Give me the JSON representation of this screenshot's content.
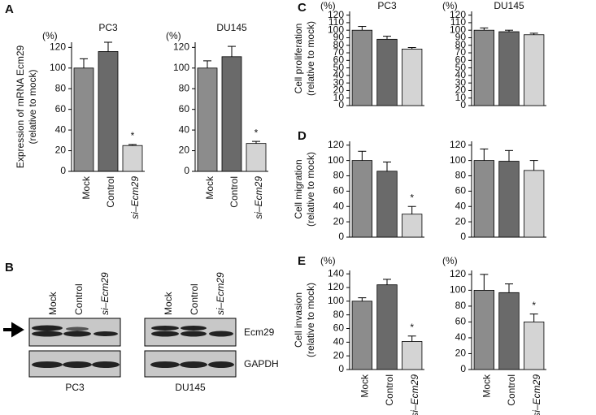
{
  "panel_labels": [
    "A",
    "B",
    "C",
    "D",
    "E"
  ],
  "chart_data": [
    {
      "type": "bar",
      "title": "PC3",
      "unit": "(%)",
      "ylabel": [
        "Expression of mRNA Ecm29",
        "(relative to mock)"
      ],
      "categories": [
        "Mock",
        "Control",
        "si–Ecm29"
      ],
      "values": [
        100,
        116,
        25
      ],
      "errors": [
        9,
        9,
        1
      ],
      "colors": [
        "#8c8c8c",
        "#6a6a6a",
        "#d4d4d4"
      ],
      "significance": [
        null,
        null,
        "*"
      ],
      "ylim": [
        0,
        125
      ],
      "yticks": [
        0,
        20,
        40,
        60,
        80,
        100,
        120
      ]
    },
    {
      "type": "bar",
      "title": "DU145",
      "unit": "(%)",
      "categories": [
        "Mock",
        "Control",
        "si–Ecm29"
      ],
      "values": [
        100,
        111,
        27
      ],
      "errors": [
        7,
        10,
        2
      ],
      "colors": [
        "#8c8c8c",
        "#6a6a6a",
        "#d4d4d4"
      ],
      "significance": [
        null,
        null,
        "*"
      ],
      "ylim": [
        0,
        125
      ],
      "yticks": [
        0,
        20,
        40,
        60,
        80,
        100,
        120
      ]
    },
    {
      "type": "bar",
      "title": "PC3",
      "unit": "(%)",
      "ylabel": [
        "Cell proliferation",
        "(relative to mock)"
      ],
      "categories": [
        null,
        null,
        null
      ],
      "values": [
        100,
        88,
        75
      ],
      "errors": [
        5,
        4,
        2
      ],
      "colors": [
        "#8c8c8c",
        "#6a6a6a",
        "#d4d4d4"
      ],
      "ylim": [
        0,
        125
      ],
      "yticks": [
        0,
        10,
        20,
        30,
        40,
        50,
        60,
        70,
        80,
        90,
        100,
        110,
        120
      ]
    },
    {
      "type": "bar",
      "title": "DU145",
      "unit": "(%)",
      "categories": [
        null,
        null,
        null
      ],
      "values": [
        100,
        98,
        94
      ],
      "errors": [
        3,
        2,
        2
      ],
      "colors": [
        "#8c8c8c",
        "#6a6a6a",
        "#d4d4d4"
      ],
      "ylim": [
        0,
        125
      ],
      "yticks": [
        0,
        10,
        20,
        30,
        40,
        50,
        60,
        70,
        80,
        90,
        100,
        110,
        120
      ]
    },
    {
      "type": "bar",
      "ylabel": [
        "Cell migration",
        "(relative to mock)"
      ],
      "categories": [
        null,
        null,
        null
      ],
      "values": [
        100,
        86,
        30
      ],
      "errors": [
        12,
        12,
        10
      ],
      "colors": [
        "#8c8c8c",
        "#6a6a6a",
        "#d4d4d4"
      ],
      "significance": [
        null,
        null,
        "*"
      ],
      "ylim": [
        0,
        125
      ],
      "yticks": [
        0,
        20,
        40,
        60,
        80,
        100,
        120
      ]
    },
    {
      "type": "bar",
      "categories": [
        null,
        null,
        null
      ],
      "values": [
        100,
        99,
        87
      ],
      "errors": [
        15,
        14,
        13
      ],
      "colors": [
        "#8c8c8c",
        "#6a6a6a",
        "#d4d4d4"
      ],
      "ylim": [
        0,
        125
      ],
      "yticks": [
        0,
        20,
        40,
        60,
        80,
        100,
        120
      ]
    },
    {
      "type": "bar",
      "unit": "(%)",
      "ylabel": [
        "Cell invasion",
        "(relative to mock)"
      ],
      "categories": [
        "Mock",
        "Control",
        "si–Ecm29"
      ],
      "values": [
        100,
        124,
        41
      ],
      "errors": [
        5,
        8,
        8
      ],
      "colors": [
        "#8c8c8c",
        "#6a6a6a",
        "#d4d4d4"
      ],
      "significance": [
        null,
        null,
        "*"
      ],
      "ylim": [
        0,
        145
      ],
      "yticks": [
        0,
        20,
        40,
        60,
        80,
        100,
        120,
        140
      ]
    },
    {
      "type": "bar",
      "unit": "(%)",
      "categories": [
        "Mock",
        "Control",
        "si–Ecm29"
      ],
      "values": [
        100,
        97,
        60
      ],
      "errors": [
        20,
        11,
        10
      ],
      "colors": [
        "#8c8c8c",
        "#6a6a6a",
        "#d4d4d4"
      ],
      "significance": [
        null,
        null,
        "*"
      ],
      "ylim": [
        0,
        125
      ],
      "yticks": [
        0,
        20,
        40,
        60,
        80,
        100,
        120
      ]
    }
  ],
  "blot": {
    "lanes": [
      "Mock",
      "Control",
      "si–Ecm29"
    ],
    "bands": [
      "Ecm29",
      "GAPDH"
    ],
    "cells": [
      "PC3",
      "DU145"
    ]
  }
}
